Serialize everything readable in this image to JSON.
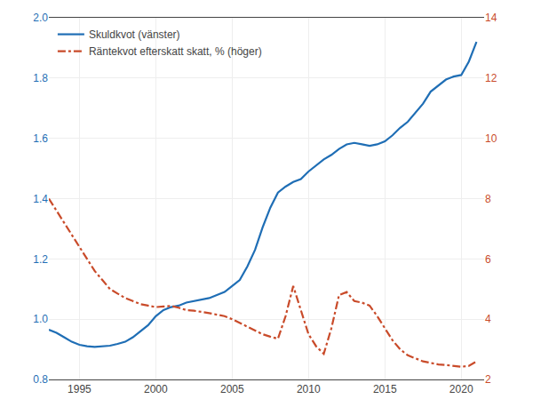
{
  "chart_data": {
    "type": "line",
    "x": [
      1993.0,
      1993.5,
      1994.0,
      1994.5,
      1995.0,
      1995.5,
      1996.0,
      1996.5,
      1997.0,
      1997.5,
      1998.0,
      1998.5,
      1999.0,
      1999.5,
      2000.0,
      2000.5,
      2001.0,
      2001.5,
      2002.0,
      2002.5,
      2003.0,
      2003.5,
      2004.0,
      2004.5,
      2005.0,
      2005.5,
      2006.0,
      2006.5,
      2007.0,
      2007.5,
      2008.0,
      2008.5,
      2009.0,
      2009.5,
      2010.0,
      2010.5,
      2011.0,
      2011.5,
      2012.0,
      2012.5,
      2013.0,
      2013.5,
      2014.0,
      2014.5,
      2015.0,
      2015.5,
      2016.0,
      2016.5,
      2017.0,
      2017.5,
      2018.0,
      2018.5,
      2019.0,
      2019.5,
      2020.0,
      2020.5,
      2021.0
    ],
    "series": [
      {
        "name": "Skuldkvot (vänster)",
        "color": "#1f6eb5",
        "line_style": "solid",
        "values": [
          0.965,
          0.955,
          0.94,
          0.925,
          0.915,
          0.91,
          0.908,
          0.91,
          0.912,
          0.918,
          0.925,
          0.94,
          0.96,
          0.98,
          1.01,
          1.03,
          1.04,
          1.045,
          1.055,
          1.06,
          1.065,
          1.07,
          1.08,
          1.09,
          1.11,
          1.13,
          1.175,
          1.23,
          1.305,
          1.37,
          1.42,
          1.44,
          1.455,
          1.465,
          1.49,
          1.51,
          1.53,
          1.545,
          1.565,
          1.58,
          1.585,
          1.58,
          1.575,
          1.58,
          1.59,
          1.61,
          1.635,
          1.655,
          1.685,
          1.715,
          1.755,
          1.775,
          1.795,
          1.805,
          1.81,
          1.855,
          1.92
        ]
      },
      {
        "name": "Räntekvot efterskatt skatt, % (höger)",
        "color": "#c94b2a",
        "line_style": "dashdot",
        "axis": "y2",
        "values": [
          8.0,
          7.6,
          7.2,
          6.8,
          6.4,
          6.0,
          5.6,
          5.3,
          5.0,
          4.85,
          4.7,
          4.6,
          4.5,
          4.45,
          4.4,
          4.42,
          4.44,
          4.38,
          4.3,
          4.28,
          4.25,
          4.2,
          4.15,
          4.1,
          4.0,
          3.88,
          3.75,
          3.62,
          3.5,
          3.42,
          3.35,
          4.1,
          5.1,
          4.3,
          3.5,
          3.1,
          2.85,
          3.7,
          4.8,
          4.9,
          4.6,
          4.55,
          4.45,
          4.1,
          3.7,
          3.3,
          3.0,
          2.8,
          2.7,
          2.6,
          2.55,
          2.5,
          2.48,
          2.45,
          2.42,
          2.45,
          2.6
        ]
      }
    ],
    "xlim": [
      1993.0,
      2021.5
    ],
    "xticks": [
      1995,
      2000,
      2005,
      2010,
      2015,
      2020
    ],
    "ylim": [
      0.8,
      2.0
    ],
    "yticks": [
      0.8,
      {
        "value": 1.0,
        "label": "1.0"
      },
      1.2,
      1.4,
      1.6,
      1.8,
      {
        "value": 2.0,
        "label": "2.0"
      }
    ],
    "y2lim": [
      2,
      14
    ],
    "y2ticks": [
      2,
      4,
      6,
      8,
      10,
      12,
      14
    ],
    "grid": true,
    "legend": "upper left"
  }
}
